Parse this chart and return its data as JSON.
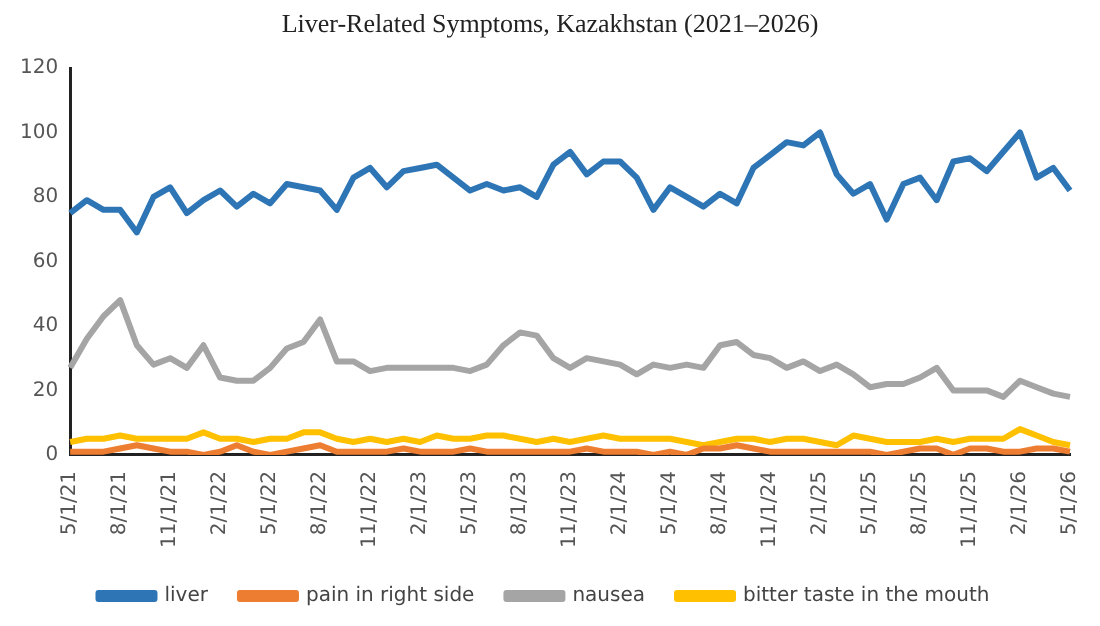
{
  "chart_data": {
    "type": "line",
    "title": "Liver-Related Symptoms, Kazakhstan (2021–2026)",
    "categories": [
      "5/1/21",
      null,
      null,
      "8/1/21",
      null,
      null,
      "11/1/21",
      null,
      null,
      "2/1/22",
      null,
      null,
      "5/1/22",
      null,
      null,
      "8/1/22",
      null,
      null,
      "11/1/22",
      null,
      null,
      "2/1/23",
      null,
      null,
      "5/1/23",
      null,
      null,
      "8/1/23",
      null,
      null,
      "11/1/23",
      null,
      null,
      "2/1/24",
      null,
      null,
      "5/1/24",
      null,
      null,
      "8/1/24",
      null,
      null,
      "11/1/24",
      null,
      null,
      "2/1/25",
      null,
      null,
      "5/1/25",
      null,
      null,
      "8/1/25",
      null,
      null,
      "11/1/25",
      null,
      null,
      "2/1/26",
      null,
      null,
      "5/1/26"
    ],
    "series": [
      {
        "name": "liver",
        "color": "#2e75b6",
        "values": [
          75,
          79,
          76,
          76,
          69,
          80,
          83,
          75,
          79,
          82,
          77,
          81,
          78,
          84,
          83,
          82,
          76,
          86,
          89,
          83,
          88,
          89,
          90,
          86,
          82,
          84,
          82,
          83,
          80,
          90,
          94,
          87,
          91,
          91,
          86,
          76,
          83,
          80,
          77,
          81,
          78,
          89,
          93,
          97,
          96,
          100,
          87,
          81,
          84,
          73,
          84,
          86,
          79,
          91,
          92,
          88,
          94,
          100,
          86,
          89,
          82
        ]
      },
      {
        "name": "pain in right side",
        "color": "#ed7d31",
        "values": [
          1,
          1,
          1,
          2,
          3,
          2,
          1,
          1,
          0,
          1,
          3,
          1,
          0,
          1,
          2,
          3,
          1,
          1,
          1,
          1,
          2,
          1,
          1,
          1,
          2,
          1,
          1,
          1,
          1,
          1,
          1,
          2,
          1,
          1,
          1,
          0,
          1,
          0,
          2,
          2,
          3,
          2,
          1,
          1,
          1,
          1,
          1,
          1,
          1,
          0,
          1,
          2,
          2,
          0,
          2,
          2,
          1,
          1,
          2,
          2,
          1
        ]
      },
      {
        "name": "nausea",
        "color": "#a5a5a5",
        "values": [
          27,
          36,
          43,
          48,
          34,
          28,
          30,
          27,
          34,
          24,
          23,
          23,
          27,
          33,
          35,
          42,
          29,
          29,
          26,
          27,
          27,
          27,
          27,
          27,
          26,
          28,
          34,
          38,
          37,
          30,
          27,
          30,
          29,
          28,
          25,
          28,
          27,
          28,
          27,
          34,
          35,
          31,
          30,
          27,
          29,
          26,
          28,
          25,
          21,
          22,
          22,
          24,
          27,
          20,
          20,
          20,
          18,
          23,
          21,
          19,
          18
        ]
      },
      {
        "name": "bitter taste in the mouth",
        "color": "#ffc000",
        "values": [
          4,
          5,
          5,
          6,
          5,
          5,
          5,
          5,
          7,
          5,
          5,
          4,
          5,
          5,
          7,
          7,
          5,
          4,
          5,
          4,
          5,
          4,
          6,
          5,
          5,
          6,
          6,
          5,
          4,
          5,
          4,
          5,
          6,
          5,
          5,
          5,
          5,
          4,
          3,
          4,
          5,
          5,
          4,
          5,
          5,
          4,
          3,
          6,
          5,
          4,
          4,
          4,
          5,
          4,
          5,
          5,
          5,
          8,
          6,
          4,
          3
        ]
      }
    ],
    "ylim": [
      0,
      120
    ],
    "yticks": [
      0,
      20,
      40,
      60,
      80,
      100,
      120
    ],
    "grid": false,
    "legend": "bottom",
    "marker": "none",
    "line_style": "solid"
  }
}
